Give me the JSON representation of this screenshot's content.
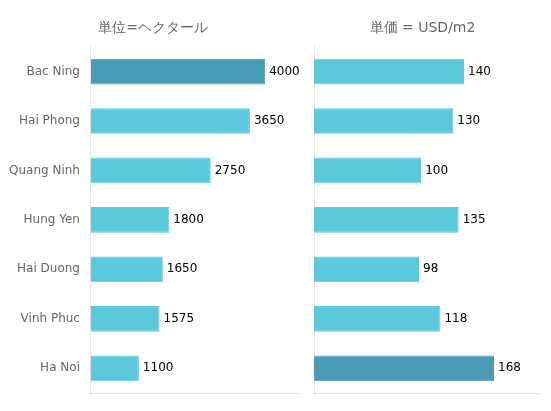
{
  "chart_data": [
    {
      "type": "bar",
      "orientation": "horizontal",
      "title": "単位=ヘクタール",
      "categories": [
        "Bac Ning",
        "Hai Phong",
        "Quang Ninh",
        "Hung Yen",
        "Hai Duong",
        "Vinh Phuc",
        "Ha Noi"
      ],
      "values": [
        4000,
        3650,
        2750,
        1800,
        1650,
        1575,
        1100
      ],
      "colors": [
        "#4A9BB5",
        "#5BC8DC",
        "#5BC8DC",
        "#5BC8DC",
        "#5BC8DC",
        "#5BC8DC",
        "#5BC8DC"
      ],
      "xlim": [
        0,
        4800
      ],
      "grid": false,
      "data_labels": true,
      "tick_labels": "y"
    },
    {
      "type": "bar",
      "orientation": "horizontal",
      "title": "単価 = USD/m2",
      "categories": [
        "Bac Ning",
        "Hai Phong",
        "Quang Ninh",
        "Hung Yen",
        "Hai Duong",
        "Vinh Phuc",
        "Ha Noi"
      ],
      "values": [
        140,
        130,
        100,
        135,
        98,
        118,
        168
      ],
      "colors": [
        "#5BC8DC",
        "#5BC8DC",
        "#5BC8DC",
        "#5BC8DC",
        "#5BC8DC",
        "#5BC8DC",
        "#4A9BB5"
      ],
      "xlim": [
        0,
        210
      ],
      "grid": false,
      "data_labels": true,
      "tick_labels": false
    }
  ]
}
